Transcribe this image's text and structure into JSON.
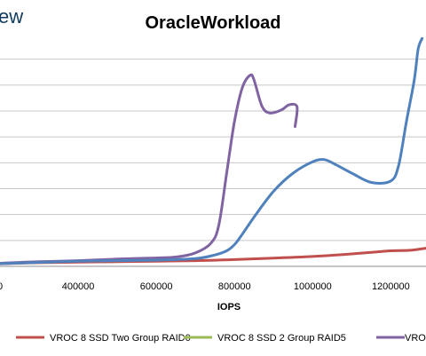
{
  "logo_text": "ew",
  "chart_data": {
    "type": "line",
    "title": "OracleWorkload",
    "xlabel": "IOPS",
    "ylabel": "",
    "xlim": [
      200000,
      1290000
    ],
    "ylim": [
      0,
      4.2
    ],
    "x_ticks": [
      400000,
      600000,
      800000,
      1000000,
      1200000
    ],
    "x_tick_labels": [
      "400000",
      "600000",
      "800000",
      "1000000",
      "1200000"
    ],
    "x_tick_clipped_label": "0",
    "y_gridlines": [
      0.5,
      1.0,
      1.5,
      2.0,
      2.5,
      3.0,
      3.5,
      4.0
    ],
    "grid": true,
    "legend_position": "bottom",
    "series": [
      {
        "name": "VROC 8 SSD Two Group RAID0",
        "color": "#c0504d",
        "x": [
          200000,
          300000,
          400000,
          500000,
          600000,
          700000,
          800000,
          900000,
          1000000,
          1100000,
          1150000,
          1200000,
          1250000,
          1290000
        ],
        "y": [
          0.05,
          0.07,
          0.08,
          0.09,
          0.1,
          0.11,
          0.13,
          0.16,
          0.19,
          0.24,
          0.27,
          0.3,
          0.31,
          0.35
        ]
      },
      {
        "name": "VROC 8 SSD 2 Group RAID5",
        "color": "#9bbb59",
        "x": [],
        "y": []
      },
      {
        "name": "VROC",
        "color": "#8064a2",
        "x": [
          200000,
          300000,
          400000,
          500000,
          580000,
          650000,
          700000,
          740000,
          760000,
          780000,
          800000,
          820000,
          840000,
          850000,
          870000,
          890000,
          920000,
          940000,
          960000,
          955000
        ],
        "y": [
          0.06,
          0.09,
          0.11,
          0.14,
          0.16,
          0.18,
          0.26,
          0.45,
          0.8,
          1.8,
          2.8,
          3.45,
          3.69,
          3.6,
          3.1,
          2.96,
          3.02,
          3.12,
          3.08,
          2.7
        ]
      },
      {
        "name": "",
        "color": "#4f81bd",
        "x": [
          200000,
          400000,
          600000,
          700000,
          750000,
          780000,
          800000,
          820000,
          850000,
          900000,
          950000,
          1000000,
          1030000,
          1060000,
          1100000,
          1150000,
          1200000,
          1220000,
          1240000,
          1260000,
          1270000,
          1280000
        ],
        "y": [
          0.05,
          0.1,
          0.12,
          0.15,
          0.22,
          0.3,
          0.42,
          0.62,
          0.95,
          1.45,
          1.8,
          2.02,
          2.06,
          1.96,
          1.8,
          1.62,
          1.65,
          1.95,
          2.8,
          3.6,
          4.2,
          4.4
        ]
      }
    ]
  }
}
